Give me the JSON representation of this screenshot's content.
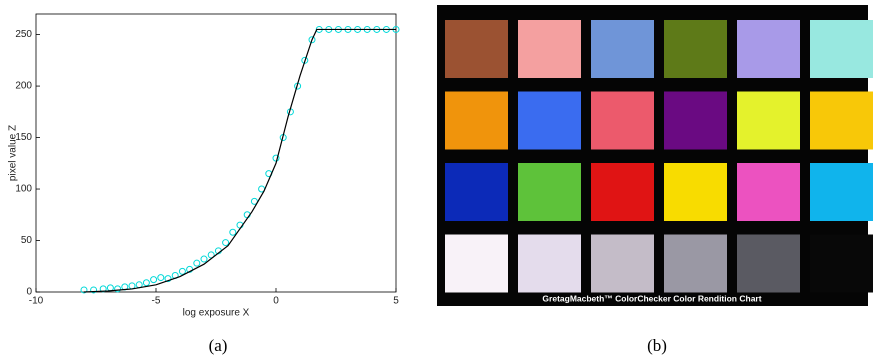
{
  "chart_data": {
    "type": "scatter",
    "x_label": "log exposure X",
    "y_label": "pixel value Z",
    "xlim": [
      -10,
      5
    ],
    "ylim": [
      0,
      270
    ],
    "xticks": [
      -10,
      -5,
      0,
      5
    ],
    "yticks": [
      0,
      50,
      100,
      150,
      200,
      250
    ],
    "series": [
      {
        "type": "scatter",
        "color": "#00d8d8",
        "x": [
          -8,
          -7.6,
          -7.2,
          -6.9,
          -6.6,
          -6.3,
          -6,
          -5.7,
          -5.4,
          -5.1,
          -4.8,
          -4.5,
          -4.2,
          -3.9,
          -3.6,
          -3.3,
          -3,
          -2.7,
          -2.4,
          -2.1,
          -1.8,
          -1.5,
          -1.2,
          -0.9,
          -0.6,
          -0.3,
          0,
          0.3,
          0.6,
          0.9,
          1.2,
          1.5,
          1.8,
          2.2,
          2.6,
          3,
          3.4,
          3.8,
          4.2,
          4.6,
          5
        ],
        "y": [
          2,
          2,
          3,
          4,
          3,
          5,
          6,
          7,
          9,
          12,
          14,
          13,
          16,
          20,
          22,
          28,
          32,
          36,
          40,
          48,
          58,
          65,
          75,
          88,
          100,
          115,
          130,
          150,
          175,
          200,
          225,
          245,
          255,
          255,
          255,
          255,
          255,
          255,
          255,
          255,
          255
        ]
      },
      {
        "type": "line",
        "color": "#000000",
        "x": [
          -8,
          -7,
          -6,
          -5,
          -4,
          -3,
          -2,
          -1,
          -0.5,
          0,
          0.5,
          1,
          1.5,
          1.7,
          5
        ],
        "y": [
          0,
          1,
          3,
          7,
          15,
          27,
          45,
          78,
          98,
          125,
          170,
          210,
          245,
          255,
          255
        ]
      }
    ]
  },
  "colorchecker": {
    "label": "GretagMacbeth™ ColorChecker Color Rendition Chart",
    "colors": [
      "#9b5232",
      "#f4a0a0",
      "#6f95d8",
      "#5e7a18",
      "#a89ae8",
      "#98e8e0",
      "#f0940c",
      "#3a6cf0",
      "#ec5a6c",
      "#6a0a82",
      "#e4f22c",
      "#f8c808",
      "#0c2ab8",
      "#5ec23a",
      "#e01414",
      "#f8dc00",
      "#ec52c0",
      "#10b4ec",
      "#f8f2f8",
      "#e4dcec",
      "#c4bcc8",
      "#9a98a4",
      "#5a5a62",
      "#080808"
    ]
  },
  "captions": [
    "(a)",
    "(b)"
  ]
}
